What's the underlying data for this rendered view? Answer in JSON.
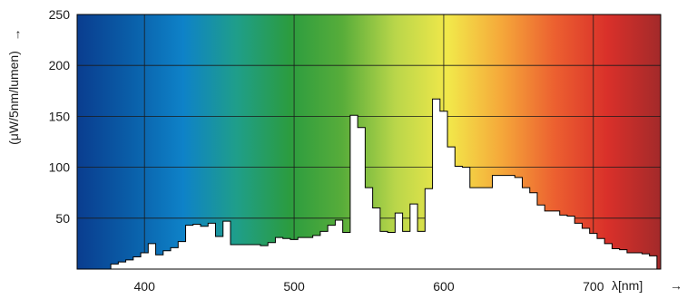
{
  "chart_data": {
    "type": "area",
    "title": "",
    "xlabel": "λ[nm]",
    "ylabel": "(μW/5nm/lumen)",
    "xlim": [
      355,
      745
    ],
    "ylim": [
      0,
      250
    ],
    "x_ticks": [
      400,
      500,
      600,
      700
    ],
    "y_ticks": [
      50,
      100,
      150,
      200,
      250
    ],
    "grid": true,
    "step_nm": 5,
    "series": [
      {
        "x": [
          380,
          385,
          390,
          395,
          400,
          405,
          410,
          415,
          420,
          425,
          430,
          435,
          440,
          445,
          450,
          455,
          460,
          465,
          470,
          475,
          480,
          485,
          490,
          495,
          500,
          505,
          510,
          515,
          520,
          525,
          530,
          535,
          540,
          545,
          550,
          555,
          560,
          565,
          570,
          575,
          580,
          585,
          590,
          595,
          600,
          605,
          610,
          615,
          620,
          625,
          630,
          635,
          640,
          645,
          650,
          655,
          660,
          665,
          670,
          675,
          680,
          685,
          690,
          695,
          700,
          705,
          710,
          715,
          720,
          725,
          730,
          735,
          740
        ],
        "values": [
          5,
          7,
          9,
          12,
          16,
          25,
          14,
          18,
          21,
          27,
          43,
          44,
          42,
          45,
          32,
          47,
          24,
          24,
          24,
          24,
          23,
          26,
          31,
          30,
          29,
          31,
          31,
          33,
          37,
          43,
          48,
          36,
          151,
          139,
          80,
          60,
          37,
          36,
          55,
          37,
          64,
          37,
          79,
          167,
          155,
          120,
          101,
          100,
          80,
          80,
          80,
          92,
          92,
          92,
          90,
          80,
          75,
          63,
          57,
          57,
          53,
          52,
          45,
          40,
          35,
          30,
          25,
          20,
          19,
          16,
          16,
          15,
          13
        ]
      }
    ],
    "background_gradient": [
      "#0a3d8f",
      "#0a5ea8",
      "#0e82c8",
      "#1f9e8a",
      "#2b9c3f",
      "#58ad3a",
      "#b9d64a",
      "#f2e84a",
      "#f5a83a",
      "#ec6030",
      "#d9302a",
      "#a32a2a"
    ]
  },
  "axes": {
    "y_arrow": "↑",
    "x_arrow": "→"
  }
}
